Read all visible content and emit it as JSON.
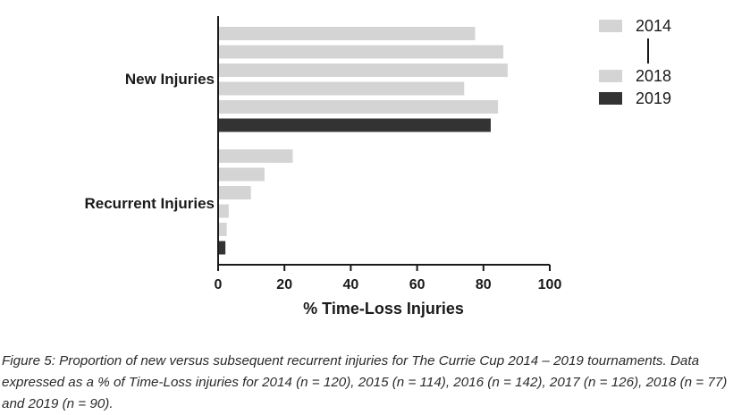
{
  "chart_data": {
    "type": "bar",
    "orientation": "horizontal",
    "categories": [
      "New Injuries",
      "Recurrent Injuries"
    ],
    "series": [
      {
        "year": "2014",
        "values": [
          77.5,
          22.5
        ]
      },
      {
        "year": "2015",
        "values": [
          86,
          14
        ]
      },
      {
        "year": "2016",
        "values": [
          87.3,
          9.9
        ]
      },
      {
        "year": "2017",
        "values": [
          74.2,
          3.2
        ]
      },
      {
        "year": "2018",
        "values": [
          84.4,
          2.6
        ]
      },
      {
        "year": "2019",
        "values": [
          82.2,
          2.2
        ]
      }
    ],
    "xlabel": "% Time-Loss Injuries",
    "xlim": [
      0,
      100
    ],
    "xticks": [
      0,
      20,
      40,
      60,
      80,
      100
    ],
    "grid": false,
    "legend": {
      "placement": "top-right",
      "entries": [
        {
          "label": "2014",
          "color": "#d4d4d4"
        },
        {
          "label": "2018",
          "color": "#d4d4d4"
        },
        {
          "label": "2019",
          "color": "#333333"
        }
      ]
    },
    "colors": {
      "2014": "#d4d4d4",
      "2015": "#d4d4d4",
      "2016": "#d4d4d4",
      "2017": "#d4d4d4",
      "2018": "#d4d4d4",
      "2019": "#333333"
    }
  },
  "caption": "Figure 5: Proportion of new versus subsequent recurrent injuries for The Currie Cup 2014 – 2019 tournaments. Data expressed as a % of Time-Loss injuries for 2014 (n = 120), 2015 (n = 114), 2016 (n = 142), 2017 (n = 126), 2018 (n = 77) and 2019 (n = 90)."
}
